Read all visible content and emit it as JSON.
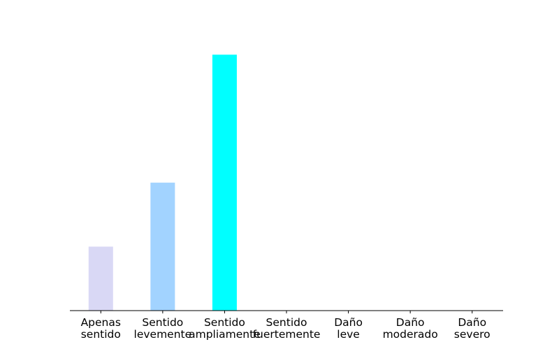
{
  "chart_data": {
    "type": "bar",
    "categories": [
      [
        "Apenas",
        "sentido"
      ],
      [
        "Sentido",
        "levemente"
      ],
      [
        "Sentido",
        "ampliamente"
      ],
      [
        "Sentido",
        "fuertemente"
      ],
      [
        "Daño",
        "leve"
      ],
      [
        "Daño",
        "moderado"
      ],
      [
        "Daño",
        "severo"
      ]
    ],
    "values": [
      1,
      2,
      4,
      0,
      0,
      0,
      0
    ],
    "colors": [
      "#d9d8f5",
      "#a2d3ff",
      "#00ffff",
      "#00ffff",
      "#00ffff",
      "#00ffff",
      "#00ffff"
    ],
    "title": "",
    "xlabel": "",
    "ylabel": "",
    "ylim": [
      0,
      4.2
    ],
    "grid": false,
    "y_axis_visible": false
  }
}
